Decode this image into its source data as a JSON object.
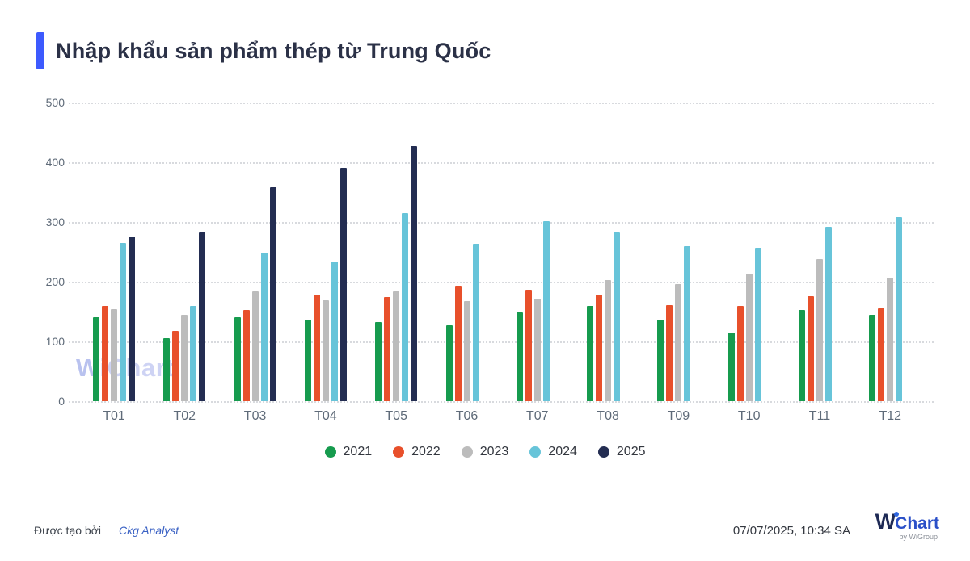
{
  "header": {
    "title": "Nhập khẩu sản phẩm thép từ Trung Quốc",
    "accent_color": "#3d5afe"
  },
  "watermark": {
    "w": "W",
    "i": "i",
    "chart": "Chart"
  },
  "chart_data": {
    "type": "bar",
    "title": "Nhập khẩu sản phẩm thép từ Trung Quốc",
    "categories": [
      "T01",
      "T02",
      "T03",
      "T04",
      "T05",
      "T06",
      "T07",
      "T08",
      "T09",
      "T10",
      "T11",
      "T12"
    ],
    "series": [
      {
        "name": "2021",
        "color": "#169b4e",
        "values": [
          141,
          105,
          141,
          137,
          132,
          127,
          149,
          159,
          137,
          115,
          153,
          145
        ]
      },
      {
        "name": "2022",
        "color": "#e8502b",
        "values": [
          159,
          118,
          153,
          178,
          175,
          193,
          187,
          178,
          161,
          160,
          176,
          155
        ]
      },
      {
        "name": "2023",
        "color": "#bcbcbc",
        "values": [
          154,
          145,
          184,
          169,
          184,
          168,
          172,
          203,
          196,
          214,
          238,
          207
        ]
      },
      {
        "name": "2024",
        "color": "#67c4d9",
        "values": [
          265,
          160,
          248,
          234,
          315,
          264,
          301,
          283,
          260,
          257,
          292,
          308
        ]
      },
      {
        "name": "2025",
        "color": "#232d52",
        "values": [
          276,
          283,
          358,
          390,
          427,
          null,
          null,
          null,
          null,
          null,
          null,
          null
        ]
      }
    ],
    "xlabel": "",
    "ylabel": "",
    "ylim": [
      0,
      500
    ],
    "yticks": [
      0,
      100,
      200,
      300,
      400,
      500
    ],
    "grid": "horizontal-dotted",
    "legend_position": "bottom"
  },
  "footer": {
    "created_by_label": "Được tạo bởi",
    "author": "Ckg Analyst",
    "timestamp": "07/07/2025, 10:34 SA",
    "logo": {
      "w": "W",
      "chart": "Chart",
      "sub": "by WiGroup"
    }
  }
}
